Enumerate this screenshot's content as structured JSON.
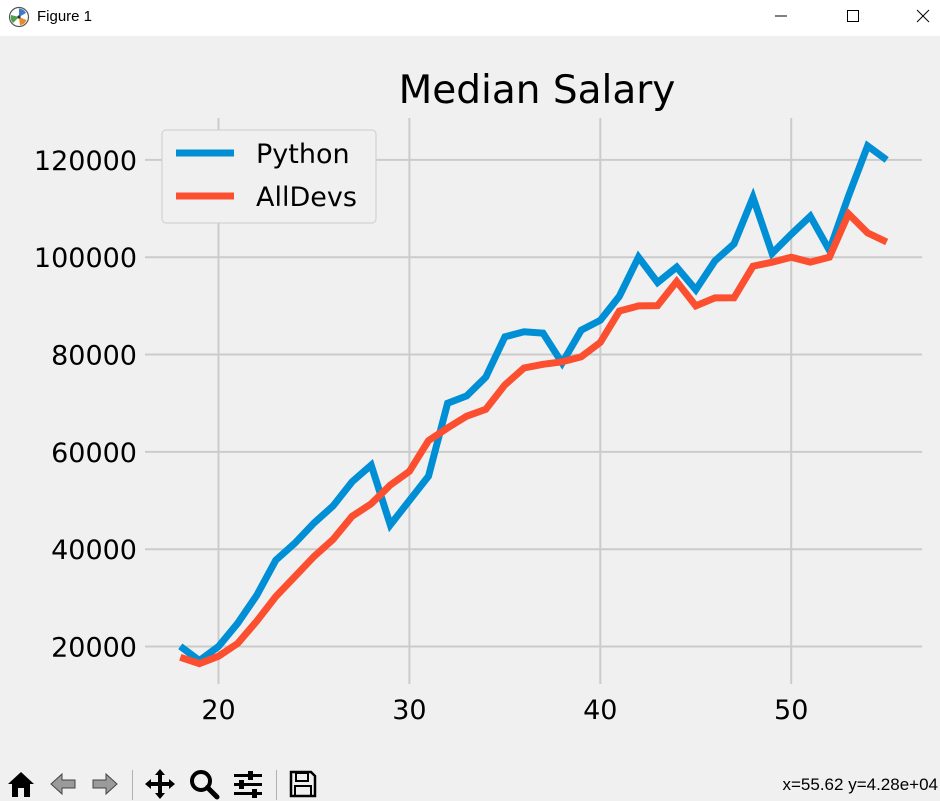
{
  "window": {
    "title": "Figure 1",
    "icons": [
      "matplotlib-icon",
      "minimize-icon",
      "maximize-icon",
      "close-icon"
    ]
  },
  "toolbar": {
    "tools": [
      "home-icon",
      "back-icon",
      "forward-icon",
      "pan-icon",
      "zoom-icon",
      "configure-subplots-icon",
      "save-icon"
    ],
    "coords_text": "x=55.62 y=4.28e+04"
  },
  "chart_data": {
    "type": "line",
    "title": "Median Salary",
    "xlabel": "",
    "ylabel": "",
    "xlim": [
      16.15,
      56.85
    ],
    "ylim": [
      12300,
      128600
    ],
    "xticks": [
      20,
      30,
      40,
      50
    ],
    "yticks": [
      20000,
      40000,
      60000,
      80000,
      100000,
      120000
    ],
    "grid": true,
    "legend_position": "upper-left",
    "x": [
      18,
      19,
      20,
      21,
      22,
      23,
      24,
      25,
      26,
      27,
      28,
      29,
      30,
      31,
      32,
      33,
      34,
      35,
      36,
      37,
      38,
      39,
      40,
      41,
      42,
      43,
      44,
      45,
      46,
      47,
      48,
      49,
      50,
      51,
      52,
      53,
      54,
      55
    ],
    "series": [
      {
        "name": "Python",
        "color": "#008fd5",
        "values": [
          20046,
          17100,
          20000,
          24744,
          30500,
          37732,
          41247,
          45372,
          48876,
          53850,
          57287,
          45000,
          50000,
          55000,
          70000,
          71496,
          75370,
          83640,
          84666,
          84392,
          78254,
          85000,
          87038,
          91991,
          100000,
          94796,
          97962,
          93302,
          99240,
          102736,
          112285,
          100771,
          104708,
          108423,
          101407,
          112542,
          122870,
          120000
        ]
      },
      {
        "name": "AllDevs",
        "color": "#fc4f30",
        "values": [
          17784,
          16500,
          18012,
          20628,
          25206,
          30252,
          34368,
          38496,
          42000,
          46752,
          49320,
          53200,
          56000,
          62316,
          64928,
          67317,
          68748,
          73752,
          77232,
          78000,
          78508,
          79536,
          82488,
          88935,
          90000,
          90056,
          95000,
          90000,
          91633,
          91660,
          98150,
          98964,
          100000,
          98988,
          100000,
          108923,
          105000,
          103117
        ]
      }
    ]
  }
}
